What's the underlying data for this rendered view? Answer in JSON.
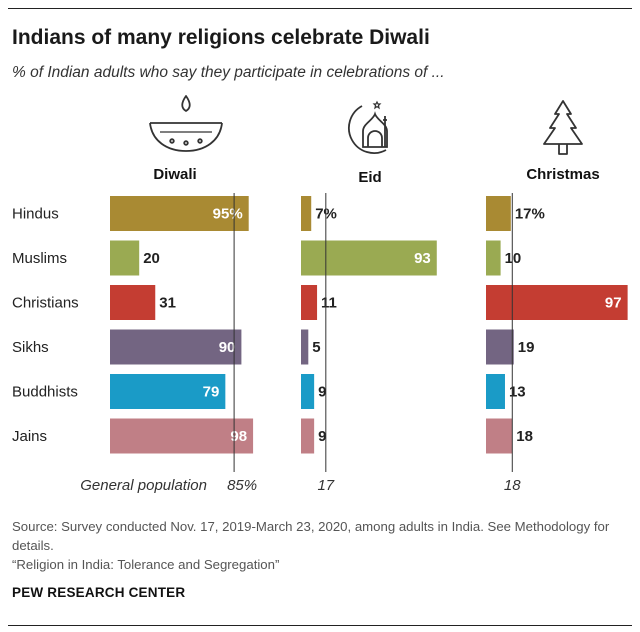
{
  "title": "Indians of many religions celebrate Diwali",
  "subtitle": "% of Indian adults who say they participate in celebrations of ...",
  "chart_data": {
    "type": "bar",
    "categories": [
      "Hindus",
      "Muslims",
      "Christians",
      "Sikhs",
      "Buddhists",
      "Jains"
    ],
    "panels": [
      {
        "name": "Diwali",
        "icon": "diya-lamp-icon",
        "values": [
          95,
          20,
          31,
          90,
          79,
          98
        ],
        "labels": [
          "95%",
          "20",
          "31",
          "90",
          "79",
          "98"
        ],
        "reference": 85,
        "reference_label": "85%"
      },
      {
        "name": "Eid",
        "icon": "mosque-crescent-icon",
        "values": [
          7,
          93,
          11,
          5,
          9,
          9
        ],
        "labels": [
          "7%",
          "93",
          "11",
          "5",
          "9",
          "9"
        ],
        "reference": 17,
        "reference_label": "17"
      },
      {
        "name": "Christmas",
        "icon": "christmas-tree-icon",
        "values": [
          17,
          10,
          97,
          19,
          13,
          18
        ],
        "labels": [
          "17%",
          "10",
          "97",
          "19",
          "13",
          "18"
        ],
        "reference": 18,
        "reference_label": "18"
      }
    ],
    "reference_row_label": "General population",
    "xlim": [
      0,
      100
    ],
    "colors": [
      "#a98a33",
      "#9aaa52",
      "#c43d32",
      "#736582",
      "#1a9bc7",
      "#c07f86"
    ]
  },
  "source": "Source: Survey conducted Nov. 17, 2019-March 23, 2020, among adults in India. See Methodology for details.",
  "report": "“Religion in India: Tolerance and Segregation”",
  "org": "PEW RESEARCH CENTER"
}
